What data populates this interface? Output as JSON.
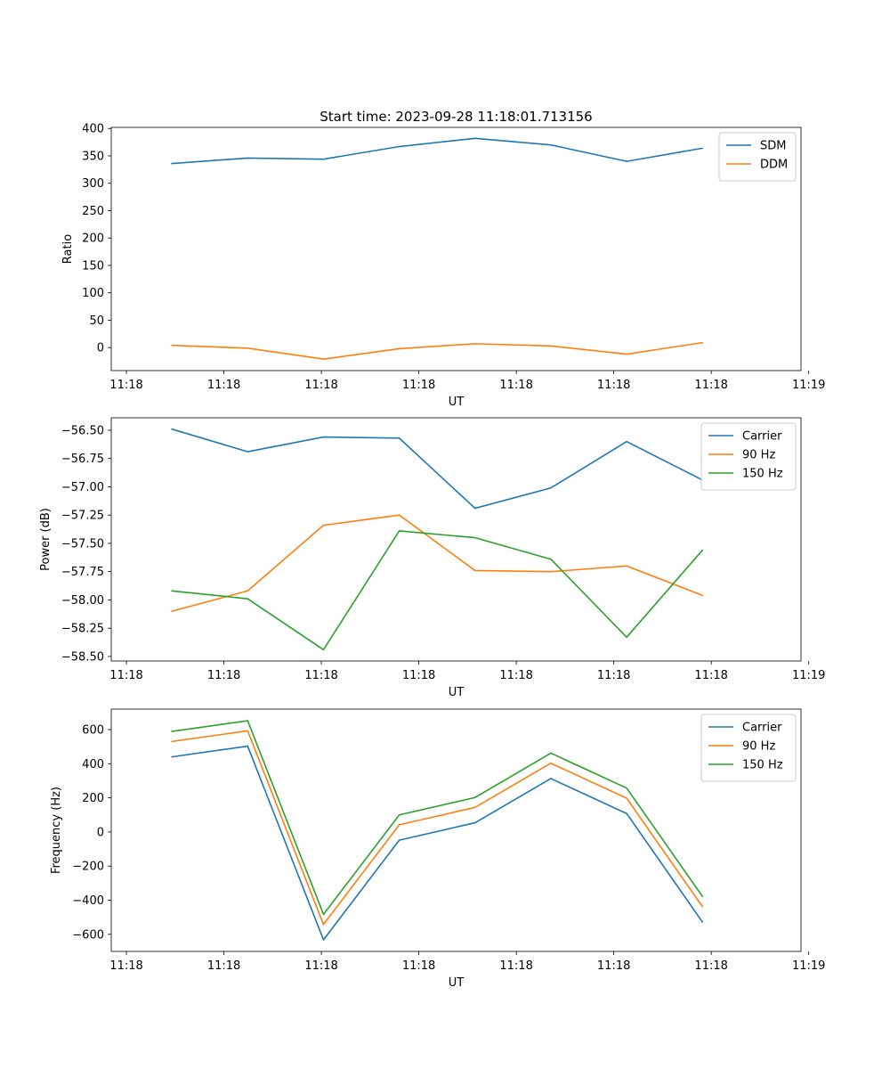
{
  "figure": {
    "title": "Start time: 2023-09-28 11:18:01.713156"
  },
  "chart_data": [
    {
      "type": "line",
      "title": "Start time: 2023-09-28 11:18:01.713156",
      "xlabel": "UT",
      "ylabel": "Ratio",
      "x_tick_labels": [
        "11:18",
        "11:18",
        "11:18",
        "11:18",
        "11:18",
        "11:18",
        "11:18",
        "11:19"
      ],
      "x": [
        1,
        2,
        3,
        4,
        5,
        6,
        7,
        8
      ],
      "xlim": [
        0.2,
        9.3
      ],
      "ylim": [
        -42,
        402
      ],
      "y_ticks": [
        0,
        50,
        100,
        150,
        200,
        250,
        300,
        350,
        400
      ],
      "y_tick_labels": [
        "0",
        "50",
        "100",
        "150",
        "200",
        "250",
        "300",
        "350",
        "400"
      ],
      "legend_position": "top-right",
      "series": [
        {
          "name": "SDM",
          "color": "#1f77b4",
          "values": [
            336,
            346,
            344,
            367,
            382,
            370,
            340,
            364
          ]
        },
        {
          "name": "DDM",
          "color": "#ff7f0e",
          "values": [
            4,
            -1,
            -21,
            -2,
            7,
            3,
            -12,
            9
          ]
        }
      ]
    },
    {
      "type": "line",
      "title": "",
      "xlabel": "UT",
      "ylabel": "Power (dB)",
      "x_tick_labels": [
        "11:18",
        "11:18",
        "11:18",
        "11:18",
        "11:18",
        "11:18",
        "11:18",
        "11:19"
      ],
      "x": [
        1,
        2,
        3,
        4,
        5,
        6,
        7,
        8
      ],
      "xlim": [
        0.2,
        9.3
      ],
      "ylim": [
        -58.54,
        -56.39
      ],
      "y_ticks": [
        -56.5,
        -56.75,
        -57.0,
        -57.25,
        -57.5,
        -57.75,
        -58.0,
        -58.25,
        -58.5
      ],
      "y_tick_labels": [
        "−56.50",
        "−56.75",
        "−57.00",
        "−57.25",
        "−57.50",
        "−57.75",
        "−58.00",
        "−58.25",
        "−58.50"
      ],
      "legend_position": "top-right",
      "series": [
        {
          "name": "Carrier",
          "color": "#1f77b4",
          "values": [
            -56.49,
            -56.69,
            -56.56,
            -56.57,
            -57.19,
            -57.01,
            -56.6,
            -56.94
          ]
        },
        {
          "name": "90 Hz",
          "color": "#ff7f0e",
          "values": [
            -58.1,
            -57.92,
            -57.34,
            -57.25,
            -57.74,
            -57.75,
            -57.7,
            -57.96
          ]
        },
        {
          "name": "150 Hz",
          "color": "#2ca02c",
          "values": [
            -57.92,
            -57.99,
            -58.44,
            -57.39,
            -57.45,
            -57.64,
            -58.33,
            -57.56
          ]
        }
      ]
    },
    {
      "type": "line",
      "title": "",
      "xlabel": "UT",
      "ylabel": "Frequency (Hz)",
      "x_tick_labels": [
        "11:18",
        "11:18",
        "11:18",
        "11:18",
        "11:18",
        "11:18",
        "11:18",
        "11:19"
      ],
      "x": [
        1,
        2,
        3,
        4,
        5,
        6,
        7,
        8
      ],
      "xlim": [
        0.2,
        9.3
      ],
      "ylim": [
        -700,
        720
      ],
      "y_ticks": [
        600,
        400,
        200,
        0,
        -200,
        -400,
        -600
      ],
      "y_tick_labels": [
        "600",
        "400",
        "200",
        "0",
        "−200",
        "−400",
        "−600"
      ],
      "legend_position": "top-right",
      "series": [
        {
          "name": "Carrier",
          "color": "#1f77b4",
          "values": [
            440,
            503,
            -632,
            -48,
            54,
            313,
            108,
            -528
          ]
        },
        {
          "name": "90 Hz",
          "color": "#ff7f0e",
          "values": [
            530,
            593,
            -542,
            42,
            144,
            403,
            198,
            -438
          ]
        },
        {
          "name": "150 Hz",
          "color": "#2ca02c",
          "values": [
            589,
            652,
            -483,
            100,
            202,
            462,
            257,
            -378
          ]
        }
      ]
    }
  ]
}
